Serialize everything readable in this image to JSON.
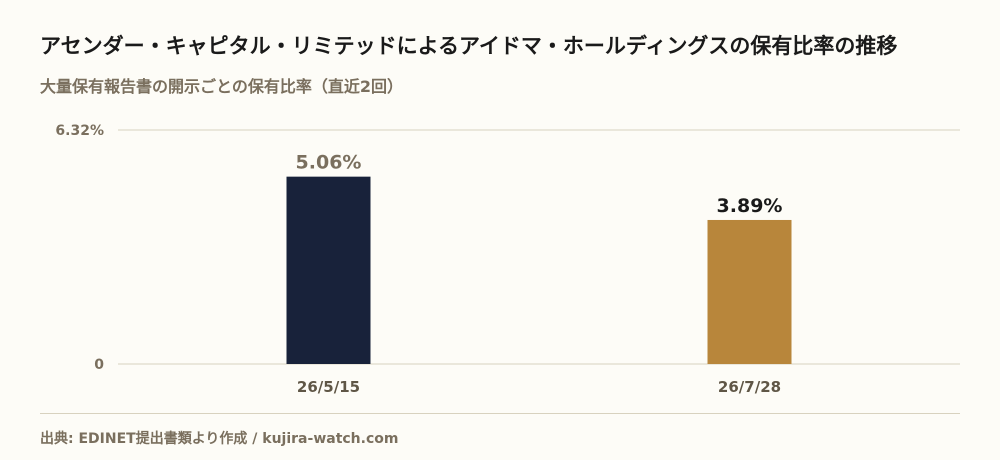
{
  "header": {
    "title": "アセンダー・キャピタル・リミテッドによるアイドマ・ホールディングスの保有比率の推移",
    "subtitle": "大量保有報告書の開示ごとの保有比率（直近2回）"
  },
  "footer": {
    "source": "出典: EDINET提出書類より作成 / kujira-watch.com"
  },
  "colors": {
    "background": "#fdfcf7",
    "bar_past": "#18223a",
    "bar_latest": "#b8863b",
    "label_past": "#7a6f5e",
    "label_latest": "#1a1a1a",
    "grid": "#d8d2bf"
  },
  "chart_data": {
    "type": "bar",
    "title": "アセンダー・キャピタル・リミテッドによるアイドマ・ホールディングスの保有比率の推移",
    "subtitle": "大量保有報告書の開示ごとの保有比率（直近2回）",
    "categories": [
      "26/5/15",
      "26/7/28"
    ],
    "values": [
      5.06,
      3.89
    ],
    "value_labels": [
      "5.06%",
      "3.89%"
    ],
    "unit": "%",
    "ylim": [
      0,
      6.32
    ],
    "y_tick_labels": [
      "0",
      "6.32%"
    ],
    "y_ticks": [
      0,
      6.32
    ],
    "grid": true,
    "legend": "none"
  }
}
